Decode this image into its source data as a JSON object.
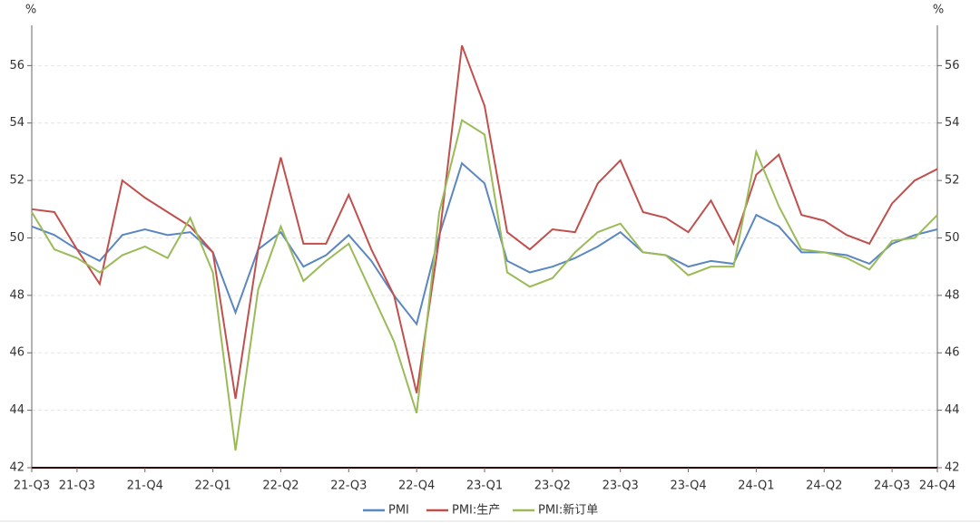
{
  "chart_data": {
    "type": "line",
    "y_axis_label": "%",
    "y2_axis_label": "%",
    "categories": [
      "21-Q3",
      null,
      "21-Q3",
      null,
      null,
      "21-Q4",
      null,
      null,
      "22-Q1",
      null,
      null,
      "22-Q2",
      null,
      null,
      "22-Q3",
      null,
      null,
      "22-Q4",
      null,
      null,
      "23-Q1",
      null,
      null,
      "23-Q2",
      null,
      null,
      "23-Q3",
      null,
      null,
      "23-Q4",
      null,
      null,
      "24-Q1",
      null,
      null,
      "24-Q2",
      null,
      null,
      "24-Q3",
      null,
      "24-Q4"
    ],
    "series": [
      {
        "name": "PMI",
        "color": "#5b87c0",
        "values": [
          50.4,
          50.1,
          49.6,
          49.2,
          50.1,
          50.3,
          50.1,
          50.2,
          49.5,
          47.4,
          49.6,
          50.2,
          49.0,
          49.4,
          50.1,
          49.2,
          48.0,
          47.0,
          50.1,
          52.6,
          51.9,
          49.2,
          48.8,
          49.0,
          49.3,
          49.7,
          50.2,
          49.5,
          49.4,
          49.0,
          49.2,
          49.1,
          50.8,
          50.4,
          49.5,
          49.5,
          49.4,
          49.1,
          49.8,
          50.1,
          50.3
        ]
      },
      {
        "name": "PMI:生产",
        "color": "#c0504d",
        "values": [
          51.0,
          50.9,
          49.6,
          48.4,
          52.0,
          51.4,
          50.9,
          50.4,
          49.5,
          44.4,
          49.6,
          52.8,
          49.8,
          49.8,
          51.5,
          49.6,
          48.0,
          44.6,
          50.0,
          56.7,
          54.6,
          50.2,
          49.6,
          50.3,
          50.2,
          51.9,
          52.7,
          50.9,
          50.7,
          50.2,
          51.3,
          49.8,
          52.2,
          52.9,
          50.8,
          50.6,
          50.1,
          49.8,
          51.2,
          52.0,
          52.4
        ]
      },
      {
        "name": "PMI:新订单",
        "color": "#9bbb59",
        "values": [
          50.9,
          49.6,
          49.3,
          48.8,
          49.4,
          49.7,
          49.3,
          50.7,
          48.8,
          42.6,
          48.2,
          50.4,
          48.5,
          49.2,
          49.8,
          48.1,
          46.4,
          43.9,
          50.9,
          54.1,
          53.6,
          48.8,
          48.3,
          48.6,
          49.5,
          50.2,
          50.5,
          49.5,
          49.4,
          48.7,
          49.0,
          49.0,
          53.0,
          51.1,
          49.6,
          49.5,
          49.3,
          48.9,
          49.9,
          50.0,
          50.8
        ]
      }
    ],
    "ylim": [
      42,
      57.4
    ],
    "yticks": [
      42,
      44,
      46,
      48,
      50,
      52,
      54,
      56
    ],
    "y2lim": [
      42,
      57.4
    ],
    "y2ticks": [
      42,
      44,
      46,
      48,
      50,
      52,
      54,
      56
    ],
    "grid": true,
    "legend": "bottom"
  }
}
